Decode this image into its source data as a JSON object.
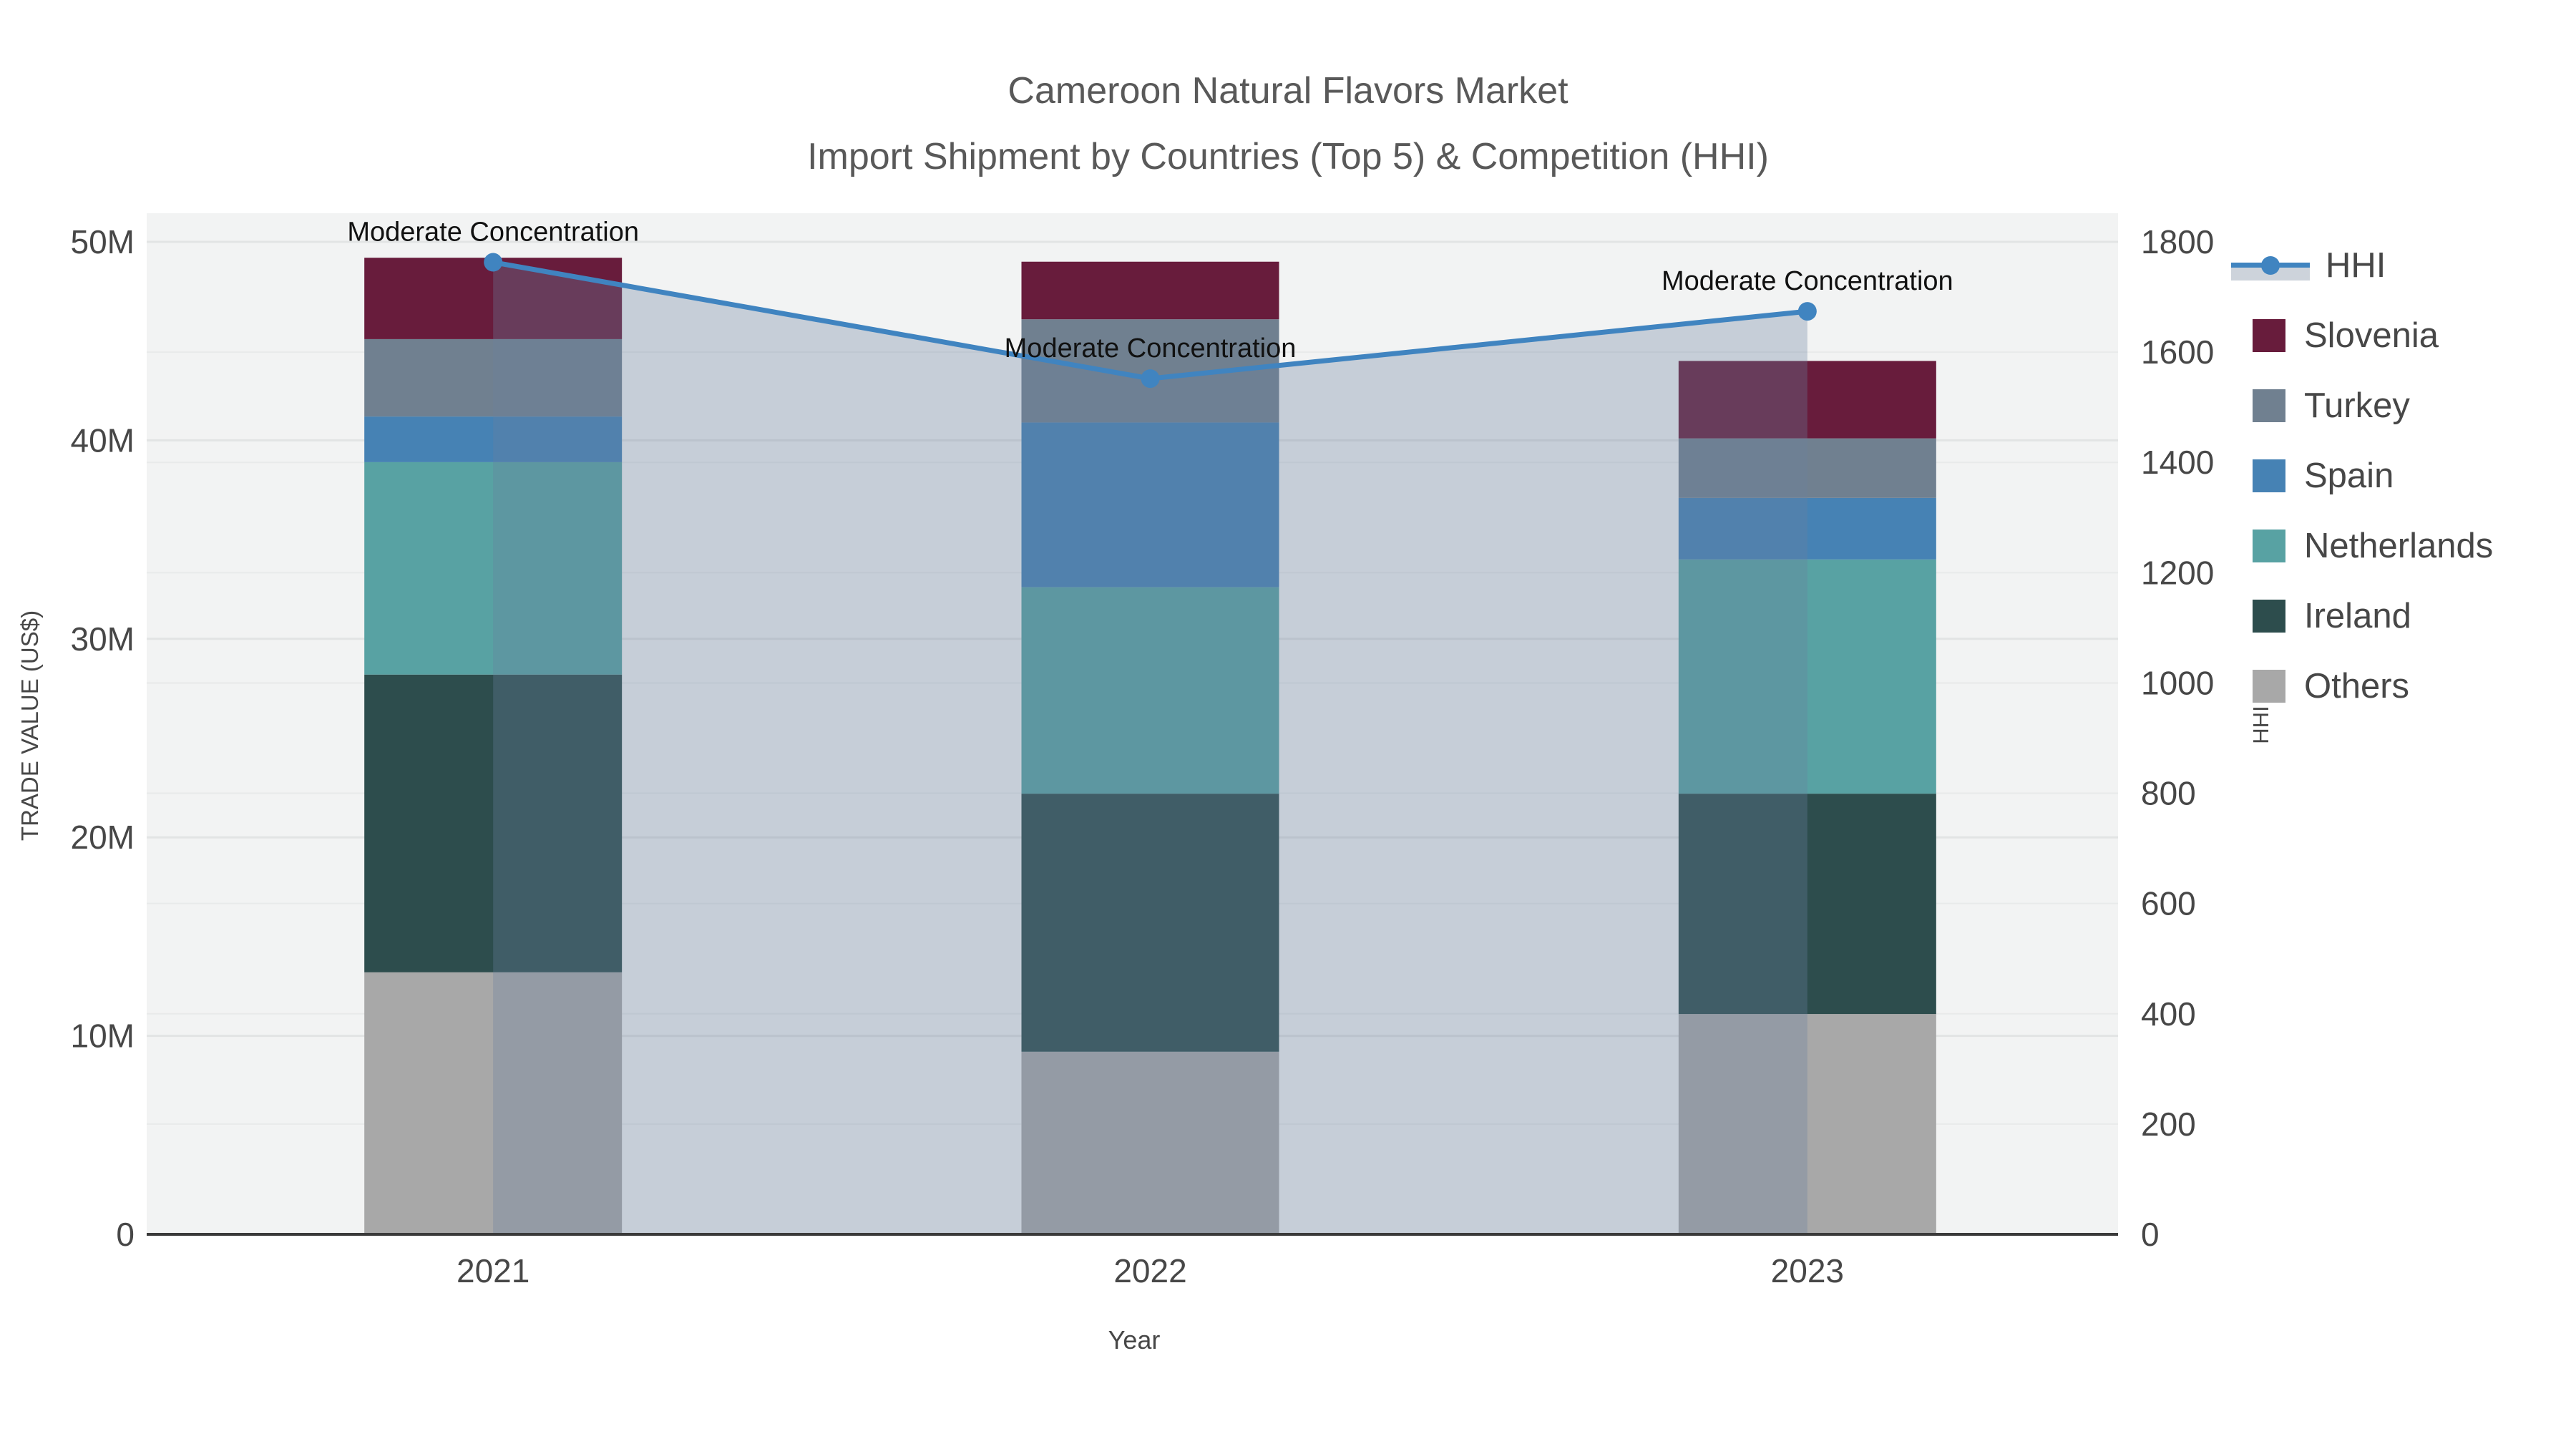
{
  "title": {
    "line1": "Cameroon Natural Flavors Market",
    "line2": "Import Shipment by Countries (Top 5) & Competition (HHI)"
  },
  "chart_data": {
    "type": "bar",
    "subtype": "stacked bars (trade value) + HHI line with translucent area fill",
    "categories": [
      "2021",
      "2022",
      "2023"
    ],
    "series": [
      {
        "name": "Others",
        "values_musd": [
          13.2,
          9.2,
          11.1
        ],
        "color": "#a8a8a8"
      },
      {
        "name": "Ireland",
        "values_musd": [
          15.0,
          13.0,
          11.1
        ],
        "color": "#2d4d4d"
      },
      {
        "name": "Netherlands",
        "values_musd": [
          10.7,
          10.4,
          11.8
        ],
        "color": "#58a2a3"
      },
      {
        "name": "Spain",
        "values_musd": [
          2.3,
          8.3,
          3.1
        ],
        "color": "#4682b4"
      },
      {
        "name": "Turkey",
        "values_musd": [
          3.9,
          5.2,
          3.0
        ],
        "color": "#708090"
      },
      {
        "name": "Slovenia",
        "values_musd": [
          4.1,
          2.9,
          3.9
        ],
        "color": "#681c3c"
      }
    ],
    "totals_musd": [
      49.2,
      49.0,
      44.0
    ],
    "hhi": {
      "name": "HHI",
      "values": [
        1763,
        1552,
        1674
      ],
      "line_color": "#4084c0",
      "fill_color": "rgba(105,128,158,0.32)",
      "annotation": "Moderate Concentration"
    },
    "xlabel": "Year",
    "ylabel_left": "TRADE VALUE (US$)",
    "ylabel_right": "HHI",
    "ylim_left_musd": [
      0,
      50
    ],
    "ylim_right": [
      0,
      1800
    ],
    "grid": true,
    "legend_position": "right"
  },
  "axes": {
    "x": {
      "title": "Year",
      "ticks": [
        "2021",
        "2022",
        "2023"
      ]
    },
    "y_left": {
      "title": "TRADE VALUE (US$)",
      "ticks": [
        "0",
        "10M",
        "20M",
        "30M",
        "40M",
        "50M"
      ]
    },
    "y_right": {
      "title": "HHI",
      "ticks": [
        "0",
        "200",
        "400",
        "600",
        "800",
        "1000",
        "1200",
        "1400",
        "1600",
        "1800"
      ]
    }
  },
  "legend": {
    "items": [
      {
        "label": "HHI",
        "type": "line-marker-fill",
        "color": "#4084c0"
      },
      {
        "label": "Slovenia",
        "type": "square",
        "color": "#681c3c"
      },
      {
        "label": "Turkey",
        "type": "square",
        "color": "#708090"
      },
      {
        "label": "Spain",
        "type": "square",
        "color": "#4682b4"
      },
      {
        "label": "Netherlands",
        "type": "square",
        "color": "#58a2a3"
      },
      {
        "label": "Ireland",
        "type": "square",
        "color": "#2d4d4d"
      },
      {
        "label": "Others",
        "type": "square",
        "color": "#a8a8a8"
      }
    ]
  },
  "colors": {
    "plot_background": "#f2f3f3",
    "grid_major": "#e2e4e4",
    "grid_minor": "#e8eaea",
    "axis_line": "#3a3a3a",
    "tick_text": "#474747",
    "title_text": "#595959",
    "annotation_text": "#111111"
  }
}
